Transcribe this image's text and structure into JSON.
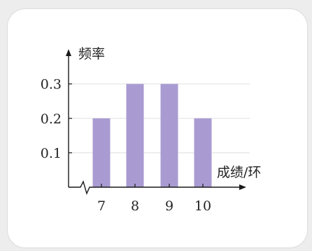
{
  "chart_data": {
    "type": "bar",
    "categories": [
      "7",
      "8",
      "9",
      "10"
    ],
    "values": [
      0.2,
      0.3,
      0.3,
      0.2
    ],
    "yticks": [
      "0.1",
      "0.2",
      "0.3"
    ],
    "ylabel": "频率",
    "xlabel": "成绩/环",
    "ylim": [
      0,
      0.35
    ],
    "grid": "horizontal",
    "broken_x_axis": true,
    "colors": {
      "bar": "#a99bd2",
      "axis": "#1a1a1a",
      "grid": "#e4e4e4",
      "background": "#ffffff"
    }
  }
}
